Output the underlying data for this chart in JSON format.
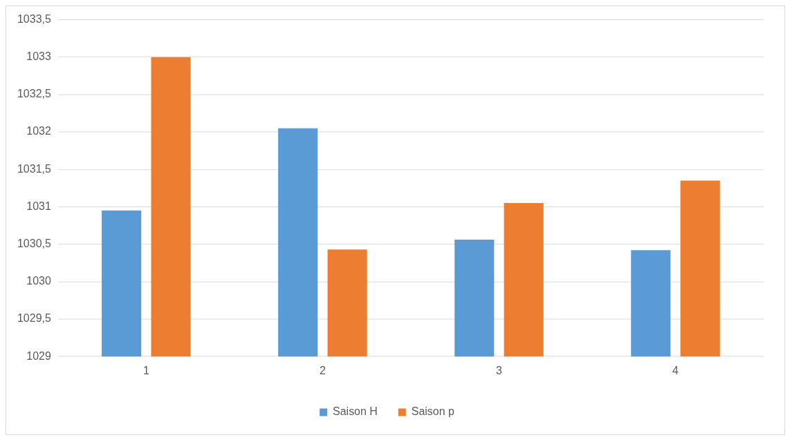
{
  "chart_data": {
    "type": "bar",
    "categories": [
      "1",
      "2",
      "3",
      "4"
    ],
    "series": [
      {
        "name": "Saison H",
        "color": "#5b9bd5",
        "values": [
          1030.95,
          1032.05,
          1030.56,
          1030.42
        ]
      },
      {
        "name": "Saison p",
        "color": "#ed7d31",
        "values": [
          1033,
          1030.43,
          1031.05,
          1031.35
        ]
      }
    ],
    "ylim": [
      1029,
      1033.5
    ],
    "yticks": [
      1029,
      {
        "value": 1029.5,
        "label": "1029,5"
      },
      1030,
      {
        "value": 1030.5,
        "label": "1030,5"
      },
      1031,
      {
        "value": 1031.5,
        "label": "1031,5"
      },
      1032,
      {
        "value": 1032.5,
        "label": "1032,5"
      },
      1033,
      {
        "value": 1033.5,
        "label": "1033,5"
      }
    ],
    "grid": "y",
    "legend": "bottom"
  }
}
